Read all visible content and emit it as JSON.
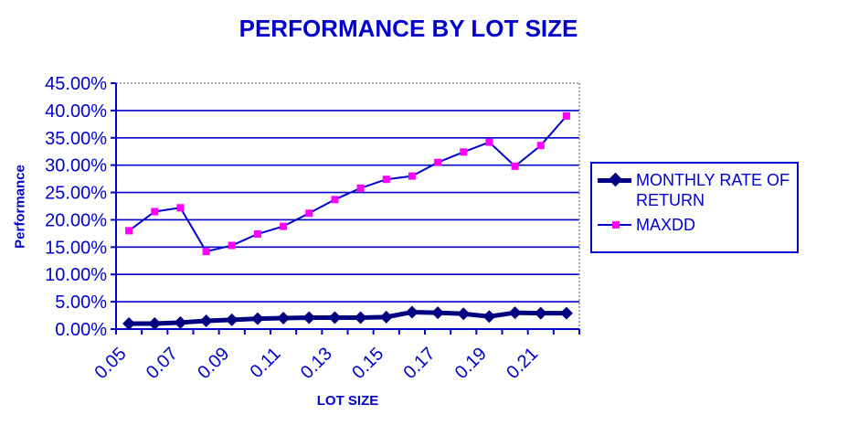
{
  "chart_data": {
    "type": "line",
    "title": "PERFORMANCE BY LOT SIZE",
    "xlabel": "LOT SIZE",
    "ylabel": "Performance",
    "x": [
      0.05,
      0.06,
      0.07,
      0.08,
      0.09,
      0.1,
      0.11,
      0.12,
      0.13,
      0.14,
      0.15,
      0.16,
      0.17,
      0.18,
      0.19,
      0.2,
      0.21,
      0.22
    ],
    "x_tick_labels": [
      "0.05",
      "0.07",
      "0.09",
      "0.11",
      "0.13",
      "0.15",
      "0.17",
      "0.19",
      "0.21"
    ],
    "x_label_every": 2,
    "ylim": [
      0,
      45
    ],
    "y_tick_step": 5,
    "y_tick_labels": [
      "45.00%",
      "40.00%",
      "35.00%",
      "30.00%",
      "25.00%",
      "20.00%",
      "15.00%",
      "10.00%",
      "5.00%",
      "0.00%"
    ],
    "grid": true,
    "legend_position": "right",
    "series": [
      {
        "name": "MONTHLY RATE OF RETURN",
        "marker": "diamond",
        "color": "#000080",
        "line_width": 5,
        "values_pct": [
          1.0,
          1.0,
          1.2,
          1.5,
          1.7,
          1.9,
          2.0,
          2.1,
          2.1,
          2.1,
          2.2,
          3.1,
          3.0,
          2.8,
          2.3,
          3.0,
          2.9,
          2.9
        ]
      },
      {
        "name": "MAXDD",
        "marker": "square",
        "color": "#FF00FF",
        "line_color": "#0000CC",
        "line_width": 2,
        "values_pct": [
          18.0,
          21.5,
          22.2,
          14.2,
          15.3,
          17.4,
          18.8,
          21.2,
          23.7,
          25.8,
          27.4,
          28.0,
          30.5,
          32.4,
          34.2,
          29.8,
          33.6,
          39.0
        ]
      }
    ],
    "colors": {
      "text": "#0000CC",
      "grid": "#0000CC",
      "axis": "#0000CC",
      "top_right_border": "#909090",
      "background": "#FFFFFF"
    }
  }
}
